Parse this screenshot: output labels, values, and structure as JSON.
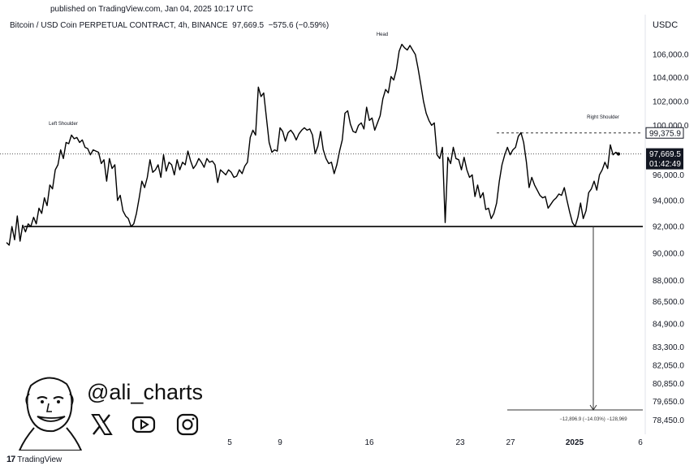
{
  "header": {
    "published": "published on TradingView.com, Jan 04, 2025 10:17 UTC",
    "symbol": "Bitcoin / USD Coin PERPETUAL CONTRACT, 4h, BINANCE",
    "price": "97,669.5",
    "change": "−575.6 (−0.59%)",
    "currency": "USDC"
  },
  "watermark": {
    "handle": "@ali_charts",
    "icons": [
      "face-caricature-icon",
      "x-icon",
      "youtube-icon",
      "instagram-icon"
    ]
  },
  "footer": {
    "brand": "TradingView",
    "logo_icon": "tradingview-logo-icon"
  },
  "chart_data": {
    "type": "line",
    "series": [
      {
        "values": [
          90800,
          90600,
          92000,
          91000,
          92800,
          90900,
          92100,
          91600,
          92200,
          92000,
          92700,
          92200,
          93400,
          93000,
          94200,
          93600,
          95200,
          94900,
          96400,
          96800,
          98000,
          97300,
          98600,
          98500,
          99200,
          98900,
          99000,
          98600,
          98800,
          98200,
          98100,
          97600,
          98000,
          97900,
          97800,
          96900,
          97200,
          95500,
          97300,
          96500,
          96800,
          94000,
          94400,
          93200,
          92800,
          92600,
          92000,
          92200,
          93000,
          94200,
          95500,
          95000,
          95800,
          97200,
          96200,
          96400,
          96800,
          95800,
          97600,
          96300,
          97000,
          96800,
          96000,
          97200,
          96400,
          97000,
          96800,
          97900,
          97100,
          96500,
          96800,
          97300,
          97000,
          96600,
          97300,
          97000,
          97100,
          96800,
          95400,
          96400,
          96200,
          96000,
          96400,
          96200,
          95800,
          95900,
          96400,
          96100,
          96700,
          97000,
          99000,
          99600,
          99200,
          103200,
          102400,
          102700,
          100600,
          98600,
          97800,
          98000,
          97900,
          99800,
          99500,
          98700,
          99400,
          99600,
          99300,
          98800,
          99300,
          99600,
          99800,
          99600,
          99700,
          99200,
          97700,
          98300,
          99500,
          98000,
          97300,
          96900,
          97000,
          96100,
          96800,
          97900,
          98800,
          101000,
          101200,
          100100,
          99500,
          99400,
          100000,
          100200,
          99700,
          101500,
          100400,
          100600,
          99600,
          100200,
          100800,
          102200,
          103000,
          102700,
          104100,
          103800,
          104700,
          106300,
          106900,
          106600,
          106400,
          106800,
          106400,
          106000,
          104800,
          103400,
          102000,
          101000,
          100400,
          100000,
          100200,
          97600,
          97300,
          98200,
          92300,
          97400,
          96900,
          98200,
          97300,
          97200,
          96400,
          97400,
          96400,
          95800,
          96000,
          94300,
          95200,
          94200,
          94600,
          93300,
          93400,
          92600,
          93000,
          93800,
          95500,
          96800,
          97600,
          98200,
          97600,
          98000,
          98200,
          99100,
          99400,
          98600,
          97000,
          95000,
          95800,
          95200,
          94800,
          94400,
          94200,
          94300,
          93400,
          93700,
          94000,
          94200,
          94500,
          94400,
          95000,
          94000,
          93100,
          92300,
          92000,
          92700,
          93800,
          92600,
          93200,
          94600,
          94900,
          95500,
          94800,
          96000,
          96400,
          97000,
          96500,
          98400,
          97600,
          97800,
          97669.5
        ]
      }
    ],
    "yticks": [
      "106,000.0",
      "104,000.0",
      "102,000.0",
      "100,000.0",
      "96,000.0",
      "94,000.0",
      "92,000.0",
      "90,000.0",
      "88,000.0",
      "86,500.0",
      "84,900.0",
      "83,300.0",
      "82,050.0",
      "80,850.0",
      "79,650.0",
      "78,450.0"
    ],
    "xticks": [
      "5",
      "9",
      "16",
      "23",
      "27",
      "2025",
      "6"
    ],
    "neckline": 92000,
    "resistance": 99375.9,
    "current": 97669.5,
    "target": 79100,
    "price_labels": {
      "resistance": "99,375.9",
      "current": "97,669.5",
      "countdown": "01:42:49"
    },
    "annotations": [
      "Left Shoulder",
      "Head",
      "Right Shoulder"
    ],
    "measure_label": "−12,896.9 (−14.03%) −128,969",
    "grid": false,
    "scale": "log"
  }
}
